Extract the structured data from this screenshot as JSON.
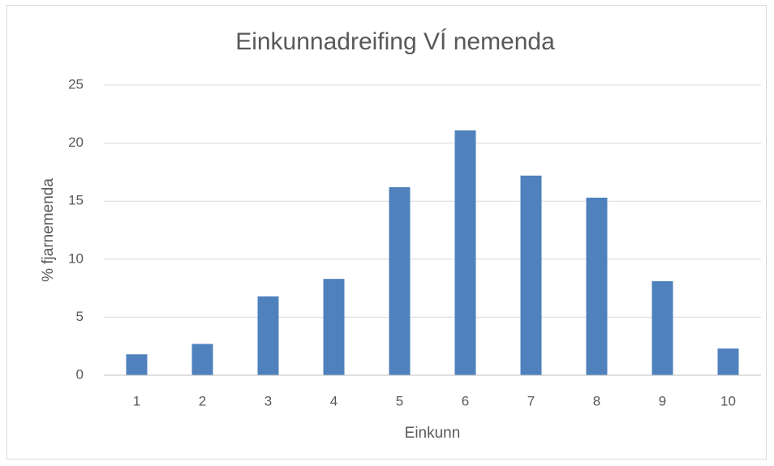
{
  "chart_data": {
    "type": "bar",
    "title": "Einkunnadreifing VÍ nemenda",
    "x_label": "Einkunn",
    "y_label": "% fjarnemenda",
    "categories": [
      "1",
      "2",
      "3",
      "4",
      "5",
      "6",
      "7",
      "8",
      "9",
      "10"
    ],
    "values": [
      1.8,
      2.7,
      6.8,
      8.3,
      16.2,
      21.1,
      17.2,
      15.3,
      8.1,
      2.3
    ],
    "color": "#4f81bd",
    "ylim": [
      0,
      25
    ],
    "yticks": [
      0,
      5,
      10,
      15,
      20,
      25
    ],
    "grid": true
  }
}
